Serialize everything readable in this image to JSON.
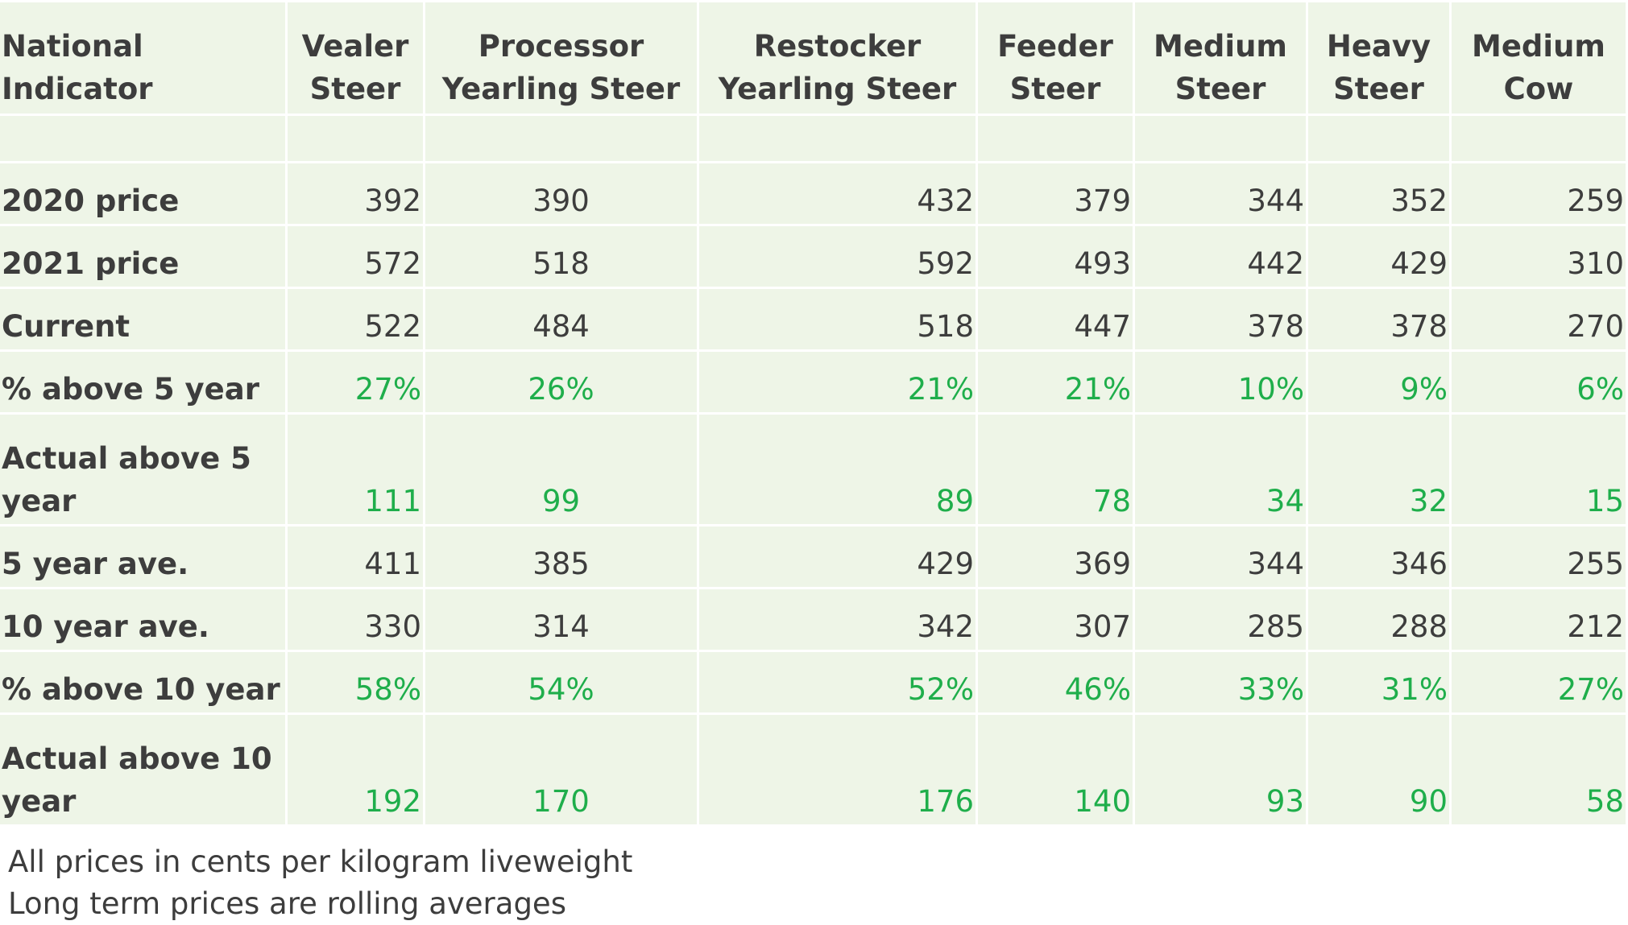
{
  "table": {
    "header_label": "National Indicator",
    "columns": [
      "Vealer Steer",
      "Processor Yearling Steer",
      "Restocker Yearling Steer",
      "Feeder Steer",
      "Medium Steer",
      "Heavy Steer",
      "Medium Cow"
    ],
    "rows": [
      {
        "label": "2020 price",
        "values": [
          "392",
          "390",
          "432",
          "379",
          "344",
          "352",
          "259"
        ]
      },
      {
        "label": "2021 price",
        "values": [
          "572",
          "518",
          "592",
          "493",
          "442",
          "429",
          "310"
        ]
      },
      {
        "label": "Current",
        "values": [
          "522",
          "484",
          "518",
          "447",
          "378",
          "378",
          "270"
        ]
      },
      {
        "label": "% above 5 year",
        "values": [
          "27%",
          "26%",
          "21%",
          "21%",
          "10%",
          "9%",
          "6%"
        ]
      },
      {
        "label": "Actual above 5 year",
        "values": [
          "111",
          "99",
          "89",
          "78",
          "34",
          "32",
          "15"
        ]
      },
      {
        "label": "5 year ave.",
        "values": [
          "411",
          "385",
          "429",
          "369",
          "344",
          "346",
          "255"
        ]
      },
      {
        "label": "10 year ave.",
        "values": [
          "330",
          "314",
          "342",
          "307",
          "285",
          "288",
          "212"
        ]
      },
      {
        "label": "% above 10 year",
        "values": [
          "58%",
          "54%",
          "52%",
          "46%",
          "33%",
          "31%",
          "27%"
        ]
      },
      {
        "label": "Actual above 10 year",
        "values": [
          "192",
          "170",
          "176",
          "140",
          "93",
          "90",
          "58"
        ]
      }
    ]
  },
  "notes": {
    "line1": "All prices in cents per kilogram liveweight",
    "line2": "Long term prices are rolling averages"
  },
  "colors": {
    "cell_background": "#eef5e7",
    "text": "#3d3d3d",
    "highlight_green": "#1fae4b"
  }
}
